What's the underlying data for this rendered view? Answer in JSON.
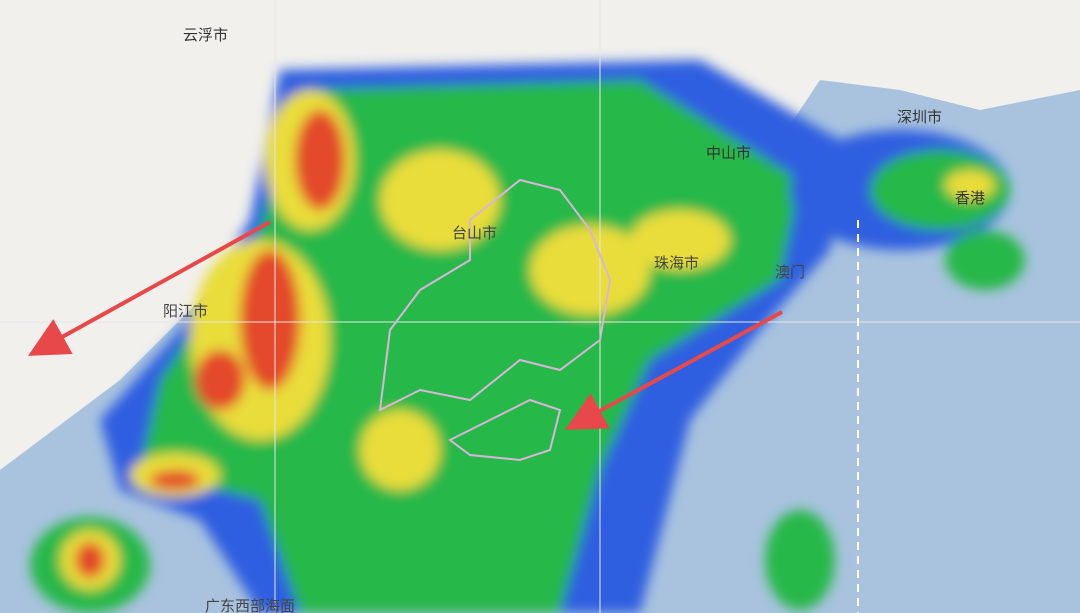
{
  "labels": {
    "yunfu": "云浮市",
    "zhongshan": "中山市",
    "shenzhen": "深圳市",
    "hongkong": "香港",
    "zhuhai": "珠海市",
    "macau": "澳门",
    "yangjiang": "阳江市",
    "taishan": "台山市",
    "sea": "广东西部海面"
  }
}
